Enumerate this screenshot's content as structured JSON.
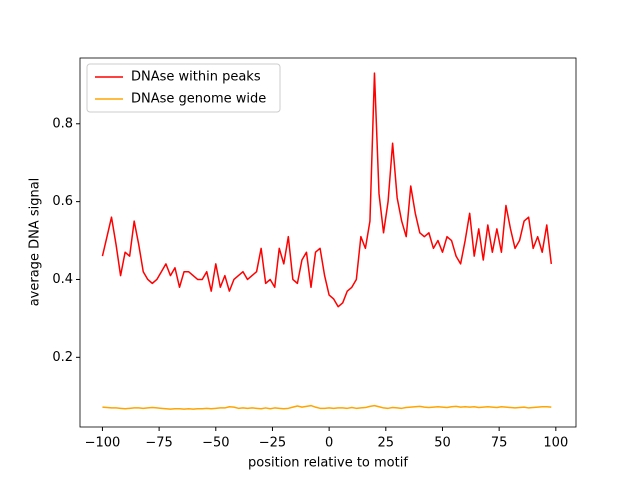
{
  "chart_data": {
    "type": "line",
    "xlabel": "position relative to motif",
    "ylabel": "average DNA signal",
    "x": [
      -100,
      -98,
      -96,
      -94,
      -92,
      -90,
      -88,
      -86,
      -84,
      -82,
      -80,
      -78,
      -76,
      -74,
      -72,
      -70,
      -68,
      -66,
      -64,
      -62,
      -60,
      -58,
      -56,
      -54,
      -52,
      -50,
      -48,
      -46,
      -44,
      -42,
      -40,
      -38,
      -36,
      -34,
      -32,
      -30,
      -28,
      -26,
      -24,
      -22,
      -20,
      -18,
      -16,
      -14,
      -12,
      -10,
      -8,
      -6,
      -4,
      -2,
      0,
      2,
      4,
      6,
      8,
      10,
      12,
      14,
      16,
      18,
      20,
      22,
      24,
      26,
      28,
      30,
      32,
      34,
      36,
      38,
      40,
      42,
      44,
      46,
      48,
      50,
      52,
      54,
      56,
      58,
      60,
      62,
      64,
      66,
      68,
      70,
      72,
      74,
      76,
      78,
      80,
      82,
      84,
      86,
      88,
      90,
      92,
      94,
      96,
      98
    ],
    "series": [
      {
        "name": "DNAse within peaks",
        "color": "#ff0000",
        "values": [
          0.46,
          0.51,
          0.56,
          0.49,
          0.41,
          0.47,
          0.46,
          0.55,
          0.49,
          0.42,
          0.4,
          0.39,
          0.4,
          0.42,
          0.44,
          0.41,
          0.43,
          0.38,
          0.42,
          0.42,
          0.41,
          0.4,
          0.4,
          0.42,
          0.37,
          0.44,
          0.38,
          0.41,
          0.37,
          0.4,
          0.41,
          0.42,
          0.4,
          0.41,
          0.42,
          0.48,
          0.39,
          0.4,
          0.38,
          0.48,
          0.44,
          0.51,
          0.4,
          0.39,
          0.45,
          0.47,
          0.38,
          0.47,
          0.48,
          0.41,
          0.36,
          0.35,
          0.33,
          0.34,
          0.37,
          0.38,
          0.4,
          0.51,
          0.48,
          0.55,
          0.93,
          0.62,
          0.52,
          0.6,
          0.75,
          0.61,
          0.55,
          0.51,
          0.64,
          0.57,
          0.52,
          0.51,
          0.52,
          0.48,
          0.5,
          0.47,
          0.51,
          0.5,
          0.46,
          0.44,
          0.5,
          0.57,
          0.46,
          0.53,
          0.45,
          0.54,
          0.47,
          0.53,
          0.47,
          0.59,
          0.53,
          0.48,
          0.5,
          0.55,
          0.56,
          0.48,
          0.51,
          0.47,
          0.54,
          0.44
        ]
      },
      {
        "name": "DNAse genome wide",
        "color": "#ffa500",
        "values": [
          0.072,
          0.071,
          0.07,
          0.07,
          0.069,
          0.068,
          0.069,
          0.07,
          0.07,
          0.069,
          0.07,
          0.071,
          0.07,
          0.069,
          0.068,
          0.067,
          0.068,
          0.068,
          0.067,
          0.068,
          0.067,
          0.068,
          0.068,
          0.069,
          0.068,
          0.069,
          0.07,
          0.07,
          0.073,
          0.072,
          0.069,
          0.07,
          0.069,
          0.07,
          0.069,
          0.068,
          0.07,
          0.068,
          0.07,
          0.069,
          0.068,
          0.069,
          0.072,
          0.075,
          0.072,
          0.074,
          0.076,
          0.072,
          0.069,
          0.069,
          0.07,
          0.069,
          0.07,
          0.07,
          0.069,
          0.071,
          0.069,
          0.07,
          0.071,
          0.074,
          0.076,
          0.073,
          0.07,
          0.069,
          0.071,
          0.07,
          0.069,
          0.071,
          0.072,
          0.073,
          0.074,
          0.072,
          0.071,
          0.072,
          0.073,
          0.072,
          0.071,
          0.073,
          0.074,
          0.072,
          0.073,
          0.072,
          0.073,
          0.071,
          0.072,
          0.073,
          0.072,
          0.071,
          0.073,
          0.072,
          0.071,
          0.07,
          0.071,
          0.072,
          0.07,
          0.071,
          0.072,
          0.073,
          0.073,
          0.072
        ]
      }
    ],
    "xlim": [
      -109.9,
      108.9
    ],
    "ylim": [
      0.021,
      0.969
    ],
    "xticks": [
      {
        "value": -100,
        "label": "−100"
      },
      {
        "value": -75,
        "label": "−75"
      },
      {
        "value": -50,
        "label": "−50"
      },
      {
        "value": -25,
        "label": "−25"
      },
      0,
      25,
      50,
      75,
      100
    ],
    "yticks": [
      0.2,
      0.4,
      0.6,
      0.8
    ],
    "legend": "upper left",
    "grid": false
  }
}
